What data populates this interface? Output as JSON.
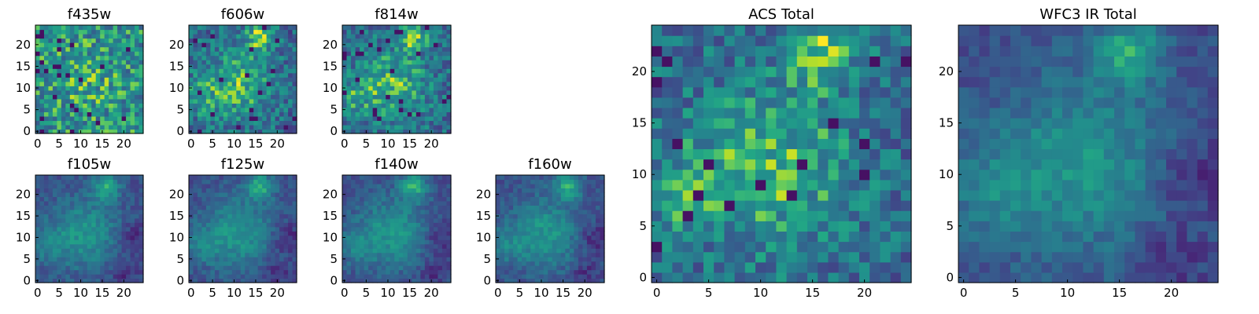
{
  "chart_data": [
    {
      "type": "heatmap",
      "title": "f435w",
      "xlim": [
        0,
        24
      ],
      "ylim": [
        0,
        24
      ],
      "xticks": [
        0,
        5,
        10,
        15,
        20
      ],
      "yticks": [
        0,
        5,
        10,
        15,
        20
      ],
      "grid": false,
      "colormap": "viridis",
      "structure": "noise",
      "z": []
    },
    {
      "type": "heatmap",
      "title": "f606w",
      "xlim": [
        0,
        24
      ],
      "ylim": [
        0,
        24
      ],
      "xticks": [
        0,
        5,
        10,
        15,
        20
      ],
      "yticks": [
        0,
        5,
        10,
        15,
        20
      ],
      "grid": false,
      "colormap": "viridis",
      "structure": "diffuse",
      "z": []
    },
    {
      "type": "heatmap",
      "title": "f814w",
      "xlim": [
        0,
        24
      ],
      "ylim": [
        0,
        24
      ],
      "xticks": [
        0,
        5,
        10,
        15,
        20
      ],
      "yticks": [
        0,
        5,
        10,
        15,
        20
      ],
      "grid": false,
      "colormap": "viridis",
      "structure": "diffuse",
      "z": []
    },
    {
      "type": "heatmap",
      "title": "f105w",
      "xlim": [
        0,
        24
      ],
      "ylim": [
        0,
        24
      ],
      "xticks": [
        0,
        5,
        10,
        15,
        20
      ],
      "yticks": [
        0,
        5,
        10,
        15,
        20
      ],
      "grid": false,
      "colormap": "viridis",
      "structure": "smooth",
      "z": []
    },
    {
      "type": "heatmap",
      "title": "f125w",
      "xlim": [
        0,
        24
      ],
      "ylim": [
        0,
        24
      ],
      "xticks": [
        0,
        5,
        10,
        15,
        20
      ],
      "yticks": [
        0,
        5,
        10,
        15,
        20
      ],
      "grid": false,
      "colormap": "viridis",
      "structure": "smooth",
      "z": []
    },
    {
      "type": "heatmap",
      "title": "f140w",
      "xlim": [
        0,
        24
      ],
      "ylim": [
        0,
        24
      ],
      "xticks": [
        0,
        5,
        10,
        15,
        20
      ],
      "yticks": [
        0,
        5,
        10,
        15,
        20
      ],
      "grid": false,
      "colormap": "viridis",
      "structure": "smooth",
      "z": []
    },
    {
      "type": "heatmap",
      "title": "f160w",
      "xlim": [
        0,
        24
      ],
      "ylim": [
        0,
        24
      ],
      "xticks": [
        0,
        5,
        10,
        15,
        20
      ],
      "yticks": [
        0,
        5,
        10,
        15,
        20
      ],
      "grid": false,
      "colormap": "viridis",
      "structure": "smooth",
      "z": []
    },
    {
      "type": "heatmap",
      "title": "ACS Total",
      "xlim": [
        0,
        24
      ],
      "ylim": [
        0,
        24
      ],
      "xticks": [
        0,
        5,
        10,
        15,
        20
      ],
      "yticks": [
        0,
        5,
        10,
        15,
        20
      ],
      "grid": false,
      "colormap": "viridis",
      "structure": "diffuse",
      "z": []
    },
    {
      "type": "heatmap",
      "title": "WFC3 IR Total",
      "xlim": [
        0,
        24
      ],
      "ylim": [
        0,
        24
      ],
      "xticks": [
        0,
        5,
        10,
        15,
        20
      ],
      "yticks": [
        0,
        5,
        10,
        15,
        20
      ],
      "grid": false,
      "colormap": "viridis",
      "structure": "smooth",
      "z": []
    }
  ]
}
